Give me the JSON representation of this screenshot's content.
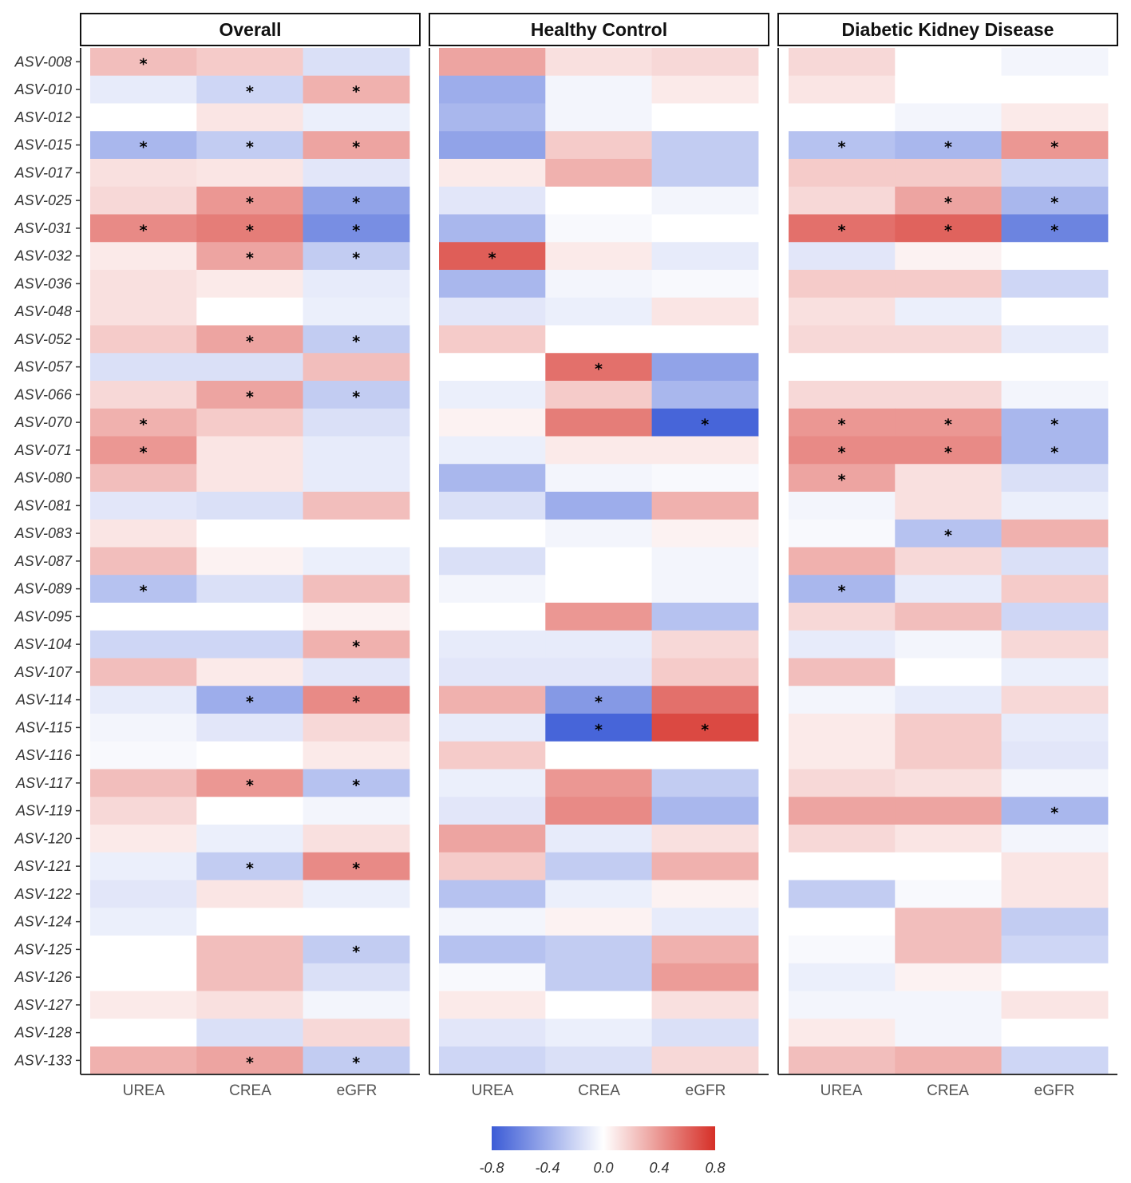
{
  "chart_data": {
    "type": "heatmap",
    "facets": [
      "Overall",
      "Healthy Control",
      "Diabetic Kidney Disease"
    ],
    "columns": [
      "UREA",
      "CREA",
      "eGFR"
    ],
    "rows": [
      "ASV-008",
      "ASV-010",
      "ASV-012",
      "ASV-015",
      "ASV-017",
      "ASV-025",
      "ASV-031",
      "ASV-032",
      "ASV-036",
      "ASV-048",
      "ASV-052",
      "ASV-057",
      "ASV-066",
      "ASV-070",
      "ASV-071",
      "ASV-080",
      "ASV-081",
      "ASV-083",
      "ASV-087",
      "ASV-089",
      "ASV-095",
      "ASV-104",
      "ASV-107",
      "ASV-114",
      "ASV-115",
      "ASV-116",
      "ASV-117",
      "ASV-119",
      "ASV-120",
      "ASV-121",
      "ASV-122",
      "ASV-124",
      "ASV-125",
      "ASV-126",
      "ASV-127",
      "ASV-128",
      "ASV-133"
    ],
    "values": [
      [
        [
          0.25,
          0.2,
          -0.15
        ],
        [
          0.35,
          0.12,
          0.15
        ],
        [
          0.15,
          0.0,
          -0.05
        ]
      ],
      [
        [
          -0.1,
          -0.2,
          0.3
        ],
        [
          -0.4,
          -0.05,
          0.08
        ],
        [
          0.1,
          0.0,
          0.0
        ]
      ],
      [
        [
          0.0,
          0.1,
          -0.08
        ],
        [
          -0.35,
          -0.05,
          0.0
        ],
        [
          0.0,
          -0.05,
          0.08
        ]
      ],
      [
        [
          -0.35,
          -0.25,
          0.35
        ],
        [
          -0.45,
          0.2,
          -0.25
        ],
        [
          -0.3,
          -0.35,
          0.4
        ]
      ],
      [
        [
          0.12,
          0.1,
          -0.12
        ],
        [
          0.08,
          0.3,
          -0.25
        ],
        [
          0.2,
          0.2,
          -0.2
        ]
      ],
      [
        [
          0.15,
          0.4,
          -0.45
        ],
        [
          -0.12,
          0.0,
          -0.05
        ],
        [
          0.15,
          0.35,
          -0.35
        ]
      ],
      [
        [
          0.45,
          0.5,
          -0.55
        ],
        [
          -0.35,
          -0.03,
          0.0
        ],
        [
          0.55,
          0.6,
          -0.6
        ]
      ],
      [
        [
          0.08,
          0.35,
          -0.25
        ],
        [
          0.62,
          0.08,
          -0.1
        ],
        [
          -0.12,
          0.05,
          0.0
        ]
      ],
      [
        [
          0.12,
          0.08,
          -0.1
        ],
        [
          -0.35,
          -0.05,
          -0.03
        ],
        [
          0.2,
          0.2,
          -0.2
        ]
      ],
      [
        [
          0.12,
          0.0,
          -0.08
        ],
        [
          -0.12,
          -0.08,
          0.1
        ],
        [
          0.12,
          -0.08,
          0.0
        ]
      ],
      [
        [
          0.2,
          0.35,
          -0.25
        ],
        [
          0.2,
          0.0,
          0.0
        ],
        [
          0.15,
          0.15,
          -0.1
        ]
      ],
      [
        [
          -0.15,
          -0.15,
          0.25
        ],
        [
          0.0,
          0.55,
          -0.45
        ],
        [
          0.0,
          0.0,
          0.0
        ]
      ],
      [
        [
          0.15,
          0.35,
          -0.25
        ],
        [
          -0.08,
          0.2,
          -0.35
        ],
        [
          0.15,
          0.15,
          -0.05
        ]
      ],
      [
        [
          0.3,
          0.2,
          -0.15
        ],
        [
          0.05,
          0.5,
          -0.75
        ],
        [
          0.4,
          0.4,
          -0.35
        ]
      ],
      [
        [
          0.4,
          0.1,
          -0.1
        ],
        [
          -0.08,
          0.08,
          0.08
        ],
        [
          0.45,
          0.45,
          -0.35
        ]
      ],
      [
        [
          0.25,
          0.1,
          -0.1
        ],
        [
          -0.35,
          -0.05,
          -0.03
        ],
        [
          0.35,
          0.12,
          -0.15
        ]
      ],
      [
        [
          -0.12,
          -0.15,
          0.25
        ],
        [
          -0.15,
          -0.4,
          0.3
        ],
        [
          -0.05,
          0.12,
          -0.08
        ]
      ],
      [
        [
          0.1,
          0.0,
          0.0
        ],
        [
          0.0,
          -0.05,
          0.05
        ],
        [
          -0.03,
          -0.3,
          0.3
        ]
      ],
      [
        [
          0.25,
          0.05,
          -0.08
        ],
        [
          -0.15,
          0.0,
          -0.05
        ],
        [
          0.3,
          0.15,
          -0.15
        ]
      ],
      [
        [
          -0.3,
          -0.15,
          0.25
        ],
        [
          -0.05,
          0.0,
          -0.05
        ],
        [
          -0.35,
          -0.1,
          0.2
        ]
      ],
      [
        [
          0.0,
          0.0,
          0.05
        ],
        [
          0.0,
          0.4,
          -0.3
        ],
        [
          0.15,
          0.25,
          -0.2
        ]
      ],
      [
        [
          -0.2,
          -0.2,
          0.3
        ],
        [
          -0.1,
          -0.1,
          0.15
        ],
        [
          -0.1,
          -0.05,
          0.15
        ]
      ],
      [
        [
          0.25,
          0.08,
          -0.12
        ],
        [
          -0.12,
          -0.12,
          0.2
        ],
        [
          0.25,
          0.0,
          -0.08
        ]
      ],
      [
        [
          -0.1,
          -0.4,
          0.45
        ],
        [
          0.3,
          -0.5,
          0.55
        ],
        [
          -0.05,
          -0.1,
          0.15
        ]
      ],
      [
        [
          -0.05,
          -0.12,
          0.15
        ],
        [
          -0.1,
          -0.75,
          0.7
        ],
        [
          0.08,
          0.2,
          -0.1
        ]
      ],
      [
        [
          -0.03,
          0.0,
          0.08
        ],
        [
          0.2,
          0.0,
          0.0
        ],
        [
          0.08,
          0.2,
          -0.12
        ]
      ],
      [
        [
          0.25,
          0.4,
          -0.3
        ],
        [
          -0.08,
          0.4,
          -0.25
        ],
        [
          0.15,
          0.12,
          -0.05
        ]
      ],
      [
        [
          0.15,
          0.0,
          -0.05
        ],
        [
          -0.12,
          0.45,
          -0.35
        ],
        [
          0.35,
          0.35,
          -0.35
        ]
      ],
      [
        [
          0.08,
          -0.08,
          0.12
        ],
        [
          0.35,
          -0.1,
          0.12
        ],
        [
          0.15,
          0.1,
          -0.05
        ]
      ],
      [
        [
          -0.08,
          -0.25,
          0.45
        ],
        [
          0.2,
          -0.25,
          0.3
        ],
        [
          0.0,
          0.0,
          0.1
        ]
      ],
      [
        [
          -0.12,
          0.1,
          -0.08
        ],
        [
          -0.3,
          -0.08,
          0.05
        ],
        [
          -0.25,
          -0.03,
          0.1
        ]
      ],
      [
        [
          -0.08,
          0.0,
          0.0
        ],
        [
          -0.05,
          0.05,
          -0.1
        ],
        [
          0.0,
          0.25,
          -0.25
        ]
      ],
      [
        [
          0.0,
          0.25,
          -0.25
        ],
        [
          -0.3,
          -0.25,
          0.3
        ],
        [
          -0.03,
          0.25,
          -0.2
        ]
      ],
      [
        [
          0.0,
          0.25,
          -0.15
        ],
        [
          -0.03,
          -0.25,
          0.38
        ],
        [
          -0.08,
          0.05,
          0.0
        ]
      ],
      [
        [
          0.08,
          0.12,
          -0.05
        ],
        [
          0.08,
          0.0,
          0.12
        ],
        [
          -0.05,
          -0.05,
          0.1
        ]
      ],
      [
        [
          0.0,
          -0.15,
          0.15
        ],
        [
          -0.12,
          -0.08,
          -0.15
        ],
        [
          0.08,
          -0.05,
          0.0
        ]
      ],
      [
        [
          0.3,
          0.35,
          -0.25
        ],
        [
          -0.2,
          -0.15,
          0.15
        ],
        [
          0.25,
          0.3,
          -0.2
        ]
      ]
    ],
    "significant": [
      [
        [
          1,
          0,
          0
        ],
        [
          0,
          0,
          0
        ],
        [
          0,
          0,
          0
        ]
      ],
      [
        [
          0,
          1,
          1
        ],
        [
          0,
          0,
          0
        ],
        [
          0,
          0,
          0
        ]
      ],
      [
        [
          0,
          0,
          0
        ],
        [
          0,
          0,
          0
        ],
        [
          0,
          0,
          0
        ]
      ],
      [
        [
          1,
          1,
          1
        ],
        [
          0,
          0,
          0
        ],
        [
          1,
          1,
          1
        ]
      ],
      [
        [
          0,
          0,
          0
        ],
        [
          0,
          0,
          0
        ],
        [
          0,
          0,
          0
        ]
      ],
      [
        [
          0,
          1,
          1
        ],
        [
          0,
          0,
          0
        ],
        [
          0,
          1,
          1
        ]
      ],
      [
        [
          1,
          1,
          1
        ],
        [
          0,
          0,
          0
        ],
        [
          1,
          1,
          1
        ]
      ],
      [
        [
          0,
          1,
          1
        ],
        [
          1,
          0,
          0
        ],
        [
          0,
          0,
          0
        ]
      ],
      [
        [
          0,
          0,
          0
        ],
        [
          0,
          0,
          0
        ],
        [
          0,
          0,
          0
        ]
      ],
      [
        [
          0,
          0,
          0
        ],
        [
          0,
          0,
          0
        ],
        [
          0,
          0,
          0
        ]
      ],
      [
        [
          0,
          1,
          1
        ],
        [
          0,
          0,
          0
        ],
        [
          0,
          0,
          0
        ]
      ],
      [
        [
          0,
          0,
          0
        ],
        [
          0,
          1,
          0
        ],
        [
          0,
          0,
          0
        ]
      ],
      [
        [
          0,
          1,
          1
        ],
        [
          0,
          0,
          0
        ],
        [
          0,
          0,
          0
        ]
      ],
      [
        [
          1,
          0,
          0
        ],
        [
          0,
          0,
          1
        ],
        [
          1,
          1,
          1
        ]
      ],
      [
        [
          1,
          0,
          0
        ],
        [
          0,
          0,
          0
        ],
        [
          1,
          1,
          1
        ]
      ],
      [
        [
          0,
          0,
          0
        ],
        [
          0,
          0,
          0
        ],
        [
          1,
          0,
          0
        ]
      ],
      [
        [
          0,
          0,
          0
        ],
        [
          0,
          0,
          0
        ],
        [
          0,
          0,
          0
        ]
      ],
      [
        [
          0,
          0,
          0
        ],
        [
          0,
          0,
          0
        ],
        [
          0,
          1,
          0
        ]
      ],
      [
        [
          0,
          0,
          0
        ],
        [
          0,
          0,
          0
        ],
        [
          0,
          0,
          0
        ]
      ],
      [
        [
          1,
          0,
          0
        ],
        [
          0,
          0,
          0
        ],
        [
          1,
          0,
          0
        ]
      ],
      [
        [
          0,
          0,
          0
        ],
        [
          0,
          0,
          0
        ],
        [
          0,
          0,
          0
        ]
      ],
      [
        [
          0,
          0,
          1
        ],
        [
          0,
          0,
          0
        ],
        [
          0,
          0,
          0
        ]
      ],
      [
        [
          0,
          0,
          0
        ],
        [
          0,
          0,
          0
        ],
        [
          0,
          0,
          0
        ]
      ],
      [
        [
          0,
          1,
          1
        ],
        [
          0,
          1,
          0
        ],
        [
          0,
          0,
          0
        ]
      ],
      [
        [
          0,
          0,
          0
        ],
        [
          0,
          1,
          1
        ],
        [
          0,
          0,
          0
        ]
      ],
      [
        [
          0,
          0,
          0
        ],
        [
          0,
          0,
          0
        ],
        [
          0,
          0,
          0
        ]
      ],
      [
        [
          0,
          1,
          1
        ],
        [
          0,
          0,
          0
        ],
        [
          0,
          0,
          0
        ]
      ],
      [
        [
          0,
          0,
          0
        ],
        [
          0,
          0,
          0
        ],
        [
          0,
          0,
          1
        ]
      ],
      [
        [
          0,
          0,
          0
        ],
        [
          0,
          0,
          0
        ],
        [
          0,
          0,
          0
        ]
      ],
      [
        [
          0,
          1,
          1
        ],
        [
          0,
          0,
          0
        ],
        [
          0,
          0,
          0
        ]
      ],
      [
        [
          0,
          0,
          0
        ],
        [
          0,
          0,
          0
        ],
        [
          0,
          0,
          0
        ]
      ],
      [
        [
          0,
          0,
          0
        ],
        [
          0,
          0,
          0
        ],
        [
          0,
          0,
          0
        ]
      ],
      [
        [
          0,
          0,
          1
        ],
        [
          0,
          0,
          0
        ],
        [
          0,
          0,
          0
        ]
      ],
      [
        [
          0,
          0,
          0
        ],
        [
          0,
          0,
          0
        ],
        [
          0,
          0,
          0
        ]
      ],
      [
        [
          0,
          0,
          0
        ],
        [
          0,
          0,
          0
        ],
        [
          0,
          0,
          0
        ]
      ],
      [
        [
          0,
          0,
          0
        ],
        [
          0,
          0,
          0
        ],
        [
          0,
          0,
          0
        ]
      ],
      [
        [
          0,
          1,
          1
        ],
        [
          0,
          0,
          0
        ],
        [
          0,
          0,
          0
        ]
      ]
    ],
    "significance_marker": "*",
    "color_scale": {
      "range": [
        -0.8,
        0.8
      ],
      "low_color": "#3b5bd6",
      "mid_color": "#ffffff",
      "high_color": "#d62f27",
      "legend_ticks": [
        "-0.8",
        "-0.4",
        "0.0",
        "0.4",
        "0.8"
      ],
      "legend_position": "bottom"
    }
  }
}
